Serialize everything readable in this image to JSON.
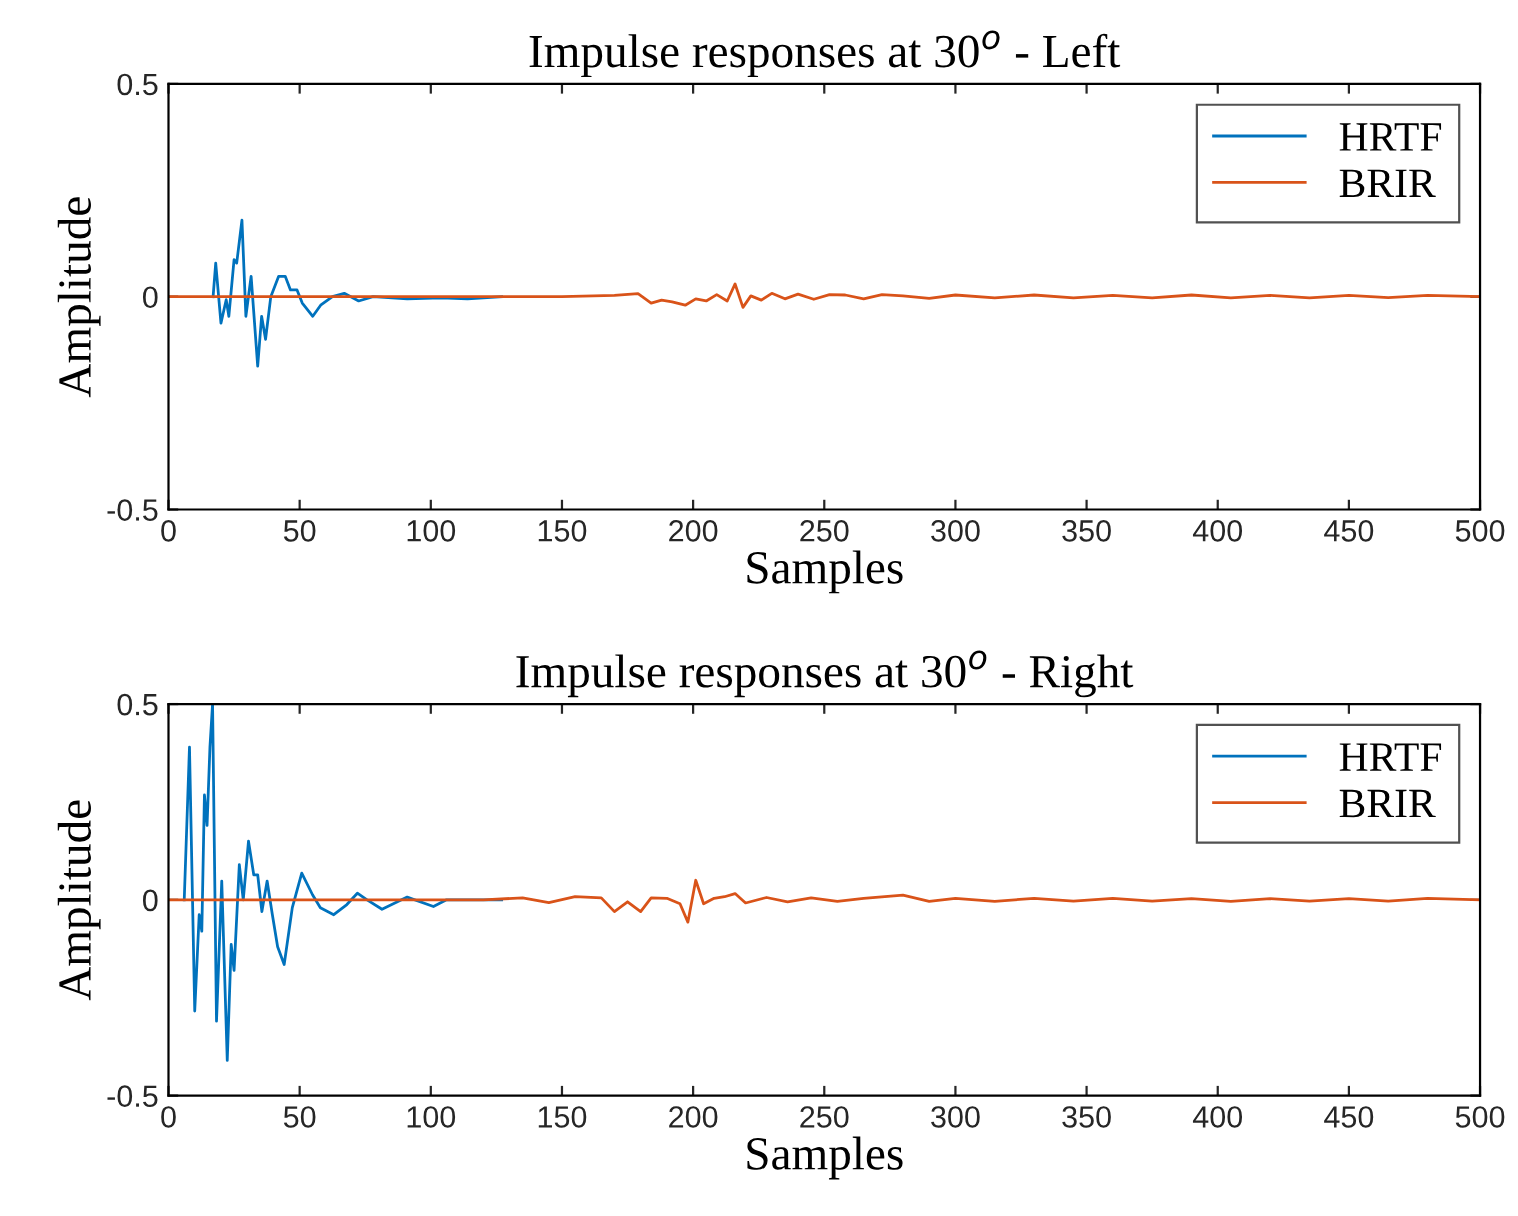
{
  "chart_data": [
    {
      "type": "line",
      "title": "Impulse responses at 30$^{o}$ - Left",
      "xlabel": "Samples",
      "ylabel": "Amplitude",
      "xlim": [
        0,
        500
      ],
      "ylim": [
        -0.5,
        0.5
      ],
      "xticks": [
        0,
        50,
        100,
        150,
        200,
        250,
        300,
        350,
        400,
        450,
        500
      ],
      "yticks": [
        -0.5,
        0,
        0.5
      ],
      "grid": false,
      "legend": "top right",
      "line_style": "solid",
      "marker": "none",
      "series": [
        {
          "name": "HRTF",
          "color": "#0072bd",
          "x": [
            17,
            18,
            20,
            22,
            23,
            25,
            26,
            28,
            29.5,
            31.5,
            34,
            35.5,
            37,
            39,
            42,
            44.5,
            46.5,
            49,
            51,
            55,
            58,
            62.5,
            67,
            72.5,
            78,
            91,
            104,
            114,
            127
          ],
          "values": [
            0,
            0.079,
            -0.062,
            -0.007,
            -0.046,
            0.087,
            0.079,
            0.18,
            -0.046,
            0.048,
            -0.163,
            -0.046,
            -0.1,
            0,
            0.048,
            0.048,
            0.016,
            0.016,
            -0.015,
            -0.046,
            -0.02,
            0,
            0.008,
            -0.01,
            0,
            -0.005,
            -0.003,
            -0.005,
            0
          ]
        },
        {
          "name": "BRIR",
          "color": "#d95319",
          "x": [
            0,
            100,
            150,
            170,
            179,
            184,
            188,
            192,
            197,
            201,
            205,
            209,
            213,
            216,
            219,
            222,
            226,
            230,
            235,
            240,
            246,
            252,
            258,
            265,
            272,
            280,
            290,
            300,
            315,
            330,
            345,
            360,
            375,
            390,
            405,
            420,
            435,
            450,
            465,
            480,
            500
          ],
          "values": [
            0,
            0,
            0,
            0.003,
            0.007,
            -0.015,
            -0.008,
            -0.012,
            -0.02,
            -0.005,
            -0.01,
            0.005,
            -0.01,
            0.03,
            -0.025,
            0.002,
            -0.008,
            0.008,
            -0.005,
            0.006,
            -0.006,
            0.005,
            0.004,
            -0.005,
            0.005,
            0.002,
            -0.004,
            0.004,
            -0.003,
            0.004,
            -0.003,
            0.003,
            -0.003,
            0.004,
            -0.003,
            0.003,
            -0.003,
            0.003,
            -0.002,
            0.003,
            0
          ]
        }
      ]
    },
    {
      "type": "line",
      "title": "Impulse responses at 30$^{o}$ - Right",
      "xlabel": "Samples",
      "ylabel": "Amplitude",
      "xlim": [
        0,
        500
      ],
      "ylim": [
        -0.5,
        0.5
      ],
      "xticks": [
        0,
        50,
        100,
        150,
        200,
        250,
        300,
        350,
        400,
        450,
        500
      ],
      "yticks": [
        -0.5,
        0,
        0.5
      ],
      "grid": false,
      "legend": "top right",
      "line_style": "solid",
      "marker": "none",
      "series": [
        {
          "name": "HRTF",
          "color": "#0072bd",
          "x": [
            6,
            8,
            10,
            11.7,
            12.7,
            13.7,
            14.7,
            15.8,
            16.8,
            18.3,
            20.3,
            22.4,
            23.9,
            25,
            27,
            28.5,
            30.5,
            32.5,
            34,
            35.6,
            37.6,
            39.6,
            41.6,
            44.1,
            47.2,
            50.8,
            54.9,
            57.9,
            63,
            68,
            72,
            75.7,
            81.4,
            91,
            101,
            106,
            119,
            127
          ],
          "values": [
            0,
            0.39,
            -0.284,
            -0.038,
            -0.08,
            0.268,
            0.19,
            0.39,
            0.5,
            -0.31,
            0.048,
            -0.41,
            -0.114,
            -0.18,
            0.09,
            0,
            0.15,
            0.064,
            0.064,
            -0.03,
            0.048,
            -0.038,
            -0.12,
            -0.165,
            -0.02,
            0.068,
            0.013,
            -0.02,
            -0.038,
            -0.012,
            0.017,
            0,
            -0.024,
            0.007,
            -0.017,
            0,
            0,
            0
          ]
        },
        {
          "name": "BRIR",
          "color": "#d95319",
          "x": [
            0,
            60,
            120,
            135,
            145,
            155,
            165,
            170,
            175,
            180,
            184,
            190,
            195,
            198,
            201,
            204,
            208,
            212,
            216,
            220,
            228,
            236,
            245,
            255,
            265,
            280,
            290,
            300,
            315,
            330,
            345,
            360,
            375,
            390,
            405,
            420,
            435,
            450,
            465,
            480,
            500
          ],
          "values": [
            0,
            0,
            0,
            0.005,
            -0.007,
            0.008,
            0.005,
            -0.03,
            -0.005,
            -0.03,
            0.005,
            0.004,
            -0.01,
            -0.057,
            0.05,
            -0.01,
            0.004,
            0.008,
            0.016,
            -0.008,
            0.006,
            -0.005,
            0.005,
            -0.004,
            0.004,
            0.012,
            -0.004,
            0.004,
            -0.004,
            0.004,
            -0.003,
            0.004,
            -0.003,
            0.003,
            -0.004,
            0.003,
            -0.003,
            0.003,
            -0.003,
            0.004,
            0
          ]
        }
      ]
    }
  ]
}
